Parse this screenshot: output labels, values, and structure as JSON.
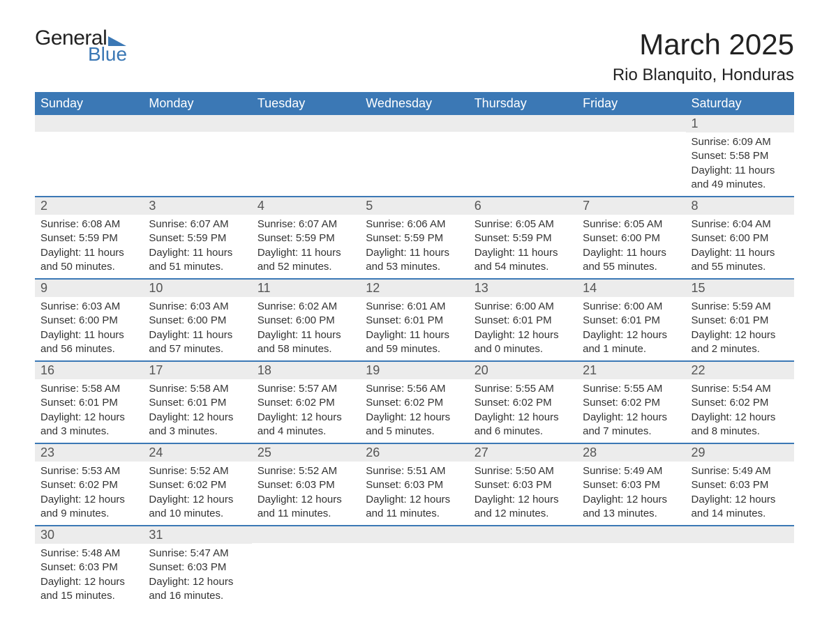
{
  "logo": {
    "word1": "General",
    "word2": "Blue",
    "brand_color": "#3b78b5"
  },
  "title": "March 2025",
  "location": "Rio Blanquito, Honduras",
  "colors": {
    "header_bg": "#3b78b5",
    "header_text": "#ffffff",
    "daynum_bg": "#ececec",
    "row_border": "#3b78b5",
    "text": "#333333",
    "background": "#ffffff"
  },
  "fonts": {
    "title_size_pt": 42,
    "location_size_pt": 24,
    "weekday_size_pt": 18,
    "daynum_size_pt": 18,
    "body_size_pt": 15
  },
  "layout": {
    "columns": 7,
    "rows": 6,
    "first_day_column_index": 6
  },
  "weekdays": [
    "Sunday",
    "Monday",
    "Tuesday",
    "Wednesday",
    "Thursday",
    "Friday",
    "Saturday"
  ],
  "days": [
    {
      "n": 1,
      "sunrise": "6:09 AM",
      "sunset": "5:58 PM",
      "daylight": "11 hours and 49 minutes."
    },
    {
      "n": 2,
      "sunrise": "6:08 AM",
      "sunset": "5:59 PM",
      "daylight": "11 hours and 50 minutes."
    },
    {
      "n": 3,
      "sunrise": "6:07 AM",
      "sunset": "5:59 PM",
      "daylight": "11 hours and 51 minutes."
    },
    {
      "n": 4,
      "sunrise": "6:07 AM",
      "sunset": "5:59 PM",
      "daylight": "11 hours and 52 minutes."
    },
    {
      "n": 5,
      "sunrise": "6:06 AM",
      "sunset": "5:59 PM",
      "daylight": "11 hours and 53 minutes."
    },
    {
      "n": 6,
      "sunrise": "6:05 AM",
      "sunset": "5:59 PM",
      "daylight": "11 hours and 54 minutes."
    },
    {
      "n": 7,
      "sunrise": "6:05 AM",
      "sunset": "6:00 PM",
      "daylight": "11 hours and 55 minutes."
    },
    {
      "n": 8,
      "sunrise": "6:04 AM",
      "sunset": "6:00 PM",
      "daylight": "11 hours and 55 minutes."
    },
    {
      "n": 9,
      "sunrise": "6:03 AM",
      "sunset": "6:00 PM",
      "daylight": "11 hours and 56 minutes."
    },
    {
      "n": 10,
      "sunrise": "6:03 AM",
      "sunset": "6:00 PM",
      "daylight": "11 hours and 57 minutes."
    },
    {
      "n": 11,
      "sunrise": "6:02 AM",
      "sunset": "6:00 PM",
      "daylight": "11 hours and 58 minutes."
    },
    {
      "n": 12,
      "sunrise": "6:01 AM",
      "sunset": "6:01 PM",
      "daylight": "11 hours and 59 minutes."
    },
    {
      "n": 13,
      "sunrise": "6:00 AM",
      "sunset": "6:01 PM",
      "daylight": "12 hours and 0 minutes."
    },
    {
      "n": 14,
      "sunrise": "6:00 AM",
      "sunset": "6:01 PM",
      "daylight": "12 hours and 1 minute."
    },
    {
      "n": 15,
      "sunrise": "5:59 AM",
      "sunset": "6:01 PM",
      "daylight": "12 hours and 2 minutes."
    },
    {
      "n": 16,
      "sunrise": "5:58 AM",
      "sunset": "6:01 PM",
      "daylight": "12 hours and 3 minutes."
    },
    {
      "n": 17,
      "sunrise": "5:58 AM",
      "sunset": "6:01 PM",
      "daylight": "12 hours and 3 minutes."
    },
    {
      "n": 18,
      "sunrise": "5:57 AM",
      "sunset": "6:02 PM",
      "daylight": "12 hours and 4 minutes."
    },
    {
      "n": 19,
      "sunrise": "5:56 AM",
      "sunset": "6:02 PM",
      "daylight": "12 hours and 5 minutes."
    },
    {
      "n": 20,
      "sunrise": "5:55 AM",
      "sunset": "6:02 PM",
      "daylight": "12 hours and 6 minutes."
    },
    {
      "n": 21,
      "sunrise": "5:55 AM",
      "sunset": "6:02 PM",
      "daylight": "12 hours and 7 minutes."
    },
    {
      "n": 22,
      "sunrise": "5:54 AM",
      "sunset": "6:02 PM",
      "daylight": "12 hours and 8 minutes."
    },
    {
      "n": 23,
      "sunrise": "5:53 AM",
      "sunset": "6:02 PM",
      "daylight": "12 hours and 9 minutes."
    },
    {
      "n": 24,
      "sunrise": "5:52 AM",
      "sunset": "6:02 PM",
      "daylight": "12 hours and 10 minutes."
    },
    {
      "n": 25,
      "sunrise": "5:52 AM",
      "sunset": "6:03 PM",
      "daylight": "12 hours and 11 minutes."
    },
    {
      "n": 26,
      "sunrise": "5:51 AM",
      "sunset": "6:03 PM",
      "daylight": "12 hours and 11 minutes."
    },
    {
      "n": 27,
      "sunrise": "5:50 AM",
      "sunset": "6:03 PM",
      "daylight": "12 hours and 12 minutes."
    },
    {
      "n": 28,
      "sunrise": "5:49 AM",
      "sunset": "6:03 PM",
      "daylight": "12 hours and 13 minutes."
    },
    {
      "n": 29,
      "sunrise": "5:49 AM",
      "sunset": "6:03 PM",
      "daylight": "12 hours and 14 minutes."
    },
    {
      "n": 30,
      "sunrise": "5:48 AM",
      "sunset": "6:03 PM",
      "daylight": "12 hours and 15 minutes."
    },
    {
      "n": 31,
      "sunrise": "5:47 AM",
      "sunset": "6:03 PM",
      "daylight": "12 hours and 16 minutes."
    }
  ],
  "labels": {
    "sunrise": "Sunrise:",
    "sunset": "Sunset:",
    "daylight": "Daylight:"
  }
}
